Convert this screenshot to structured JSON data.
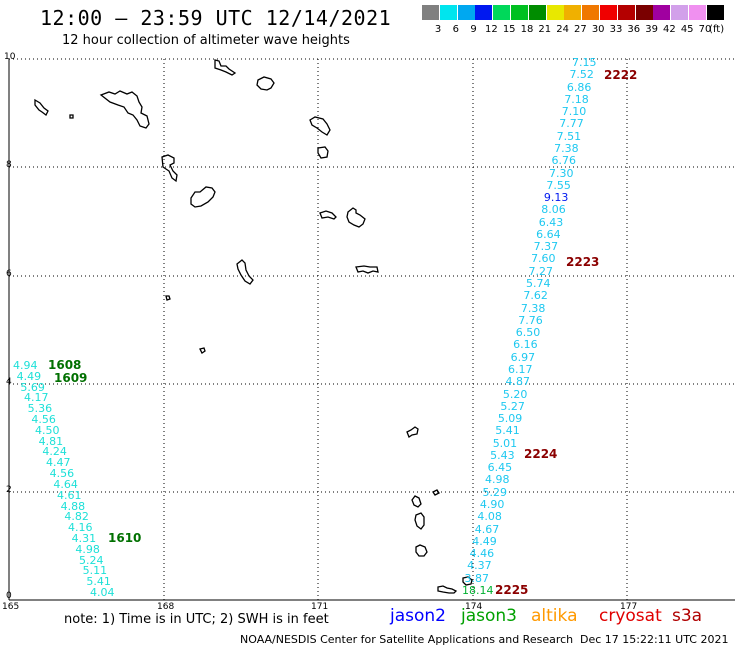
{
  "header": {
    "title": "12:00 – 23:59 UTC 12/14/2021",
    "subtitle": "12 hour collection of altimeter wave heights"
  },
  "legend": {
    "unit": "(ft)",
    "bins": [
      {
        "label": "3",
        "color": "#808080"
      },
      {
        "label": "6",
        "color": "#00e5ee"
      },
      {
        "label": "9",
        "color": "#00a8f0"
      },
      {
        "label": "12",
        "color": "#0018f0"
      },
      {
        "label": "15",
        "color": "#00d85a"
      },
      {
        "label": "18",
        "color": "#00c020"
      },
      {
        "label": "21",
        "color": "#008c00"
      },
      {
        "label": "24",
        "color": "#e8e800"
      },
      {
        "label": "27",
        "color": "#f0b000"
      },
      {
        "label": "30",
        "color": "#f07800"
      },
      {
        "label": "33",
        "color": "#f00000"
      },
      {
        "label": "36",
        "color": "#b40000"
      },
      {
        "label": "39",
        "color": "#7a0000"
      },
      {
        "label": "42",
        "color": "#a000a0"
      },
      {
        "label": "45",
        "color": "#d2a0ea"
      },
      {
        "label": "70",
        "color": "#f090f0"
      },
      {
        "label": "",
        "color": "#000000"
      }
    ]
  },
  "axes": {
    "x_ticks": [
      "165",
      "168",
      "171",
      "174",
      "177"
    ],
    "y_ticks": [
      "0",
      "2",
      "4",
      "6",
      "8",
      "10"
    ]
  },
  "tracks": {
    "east": {
      "color": "#1ec8f0",
      "values": [
        "7.15",
        "7.52",
        "6.86",
        "7.18",
        "7.10",
        "7.77",
        "7.51",
        "7.38",
        "6.76",
        "7.30",
        "7.55",
        "9.13",
        "8.06",
        "6.43",
        "6.64",
        "7.37",
        "7.60",
        "7.27",
        "5.74",
        "7.62",
        "7.38",
        "7.76",
        "6.50",
        "6.16",
        "6.97",
        "6.17",
        "4.87",
        "5.20",
        "5.27",
        "5.09",
        "5.41",
        "5.01",
        "5.43",
        "6.45",
        "4.98",
        "5.29",
        "4.90",
        "4.08",
        "4.67",
        "4.49",
        "4.46",
        "4.37",
        "3.87",
        "18.14"
      ]
    },
    "west": {
      "color": "#1ee0d8",
      "values": [
        "4.94",
        "4.49",
        "5.69",
        "4.17",
        "5.36",
        "4.56",
        "4.50",
        "4.81",
        "4.24",
        "4.47",
        "4.56",
        "4.64",
        "4.61",
        "4.88",
        "4.82",
        "4.16",
        "4.31",
        "4.98",
        "5.24",
        "5.11",
        "5.41",
        "4.04"
      ]
    }
  },
  "passes": {
    "p2222": "2222",
    "p2223": "2223",
    "p2224": "2224",
    "p2225": "2225",
    "p1608": "1608",
    "p1609": "1609",
    "p1610": "1610"
  },
  "colors": {
    "cryosat_pass": "#8b0000",
    "jason3_pass": "#007000",
    "grid": "#000000"
  },
  "footer": {
    "note": "note:  1) Time is in UTC;  2) SWH is in feet",
    "satellites": {
      "jason2": {
        "label": "jason2",
        "color": "#0000ff"
      },
      "jason3": {
        "label": "jason3",
        "color": "#00a000"
      },
      "altika": {
        "label": "altika",
        "color": "#ff9900"
      },
      "cryosat": {
        "label": "cryosat",
        "color": "#e00000"
      },
      "s3a": {
        "label": "s3a",
        "color": "#b00000"
      }
    },
    "credit": "NOAA/NESDIS Center for Satellite Applications and Research",
    "timestamp": "Dec 17 15:22:11 UTC 2021"
  }
}
